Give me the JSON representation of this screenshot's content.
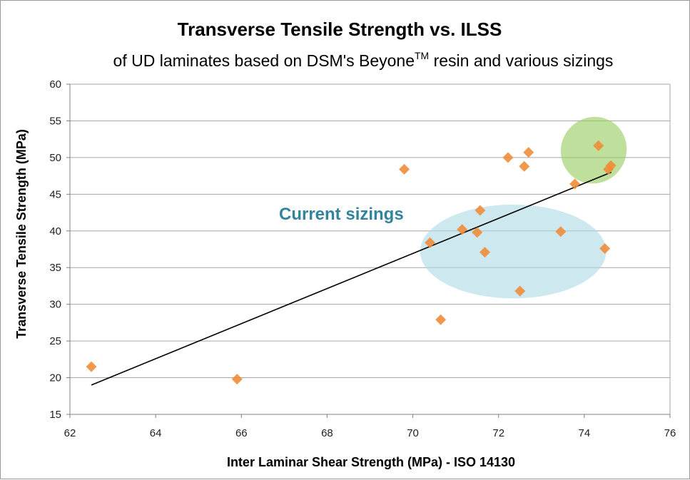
{
  "chart_data": {
    "type": "scatter",
    "title": "Transverse Tensile Strength vs. ILSS",
    "subtitle": {
      "main": "of UD laminates based on DSM's Beyone",
      "superscript": "TM",
      "rest": " resin and various sizings"
    },
    "xlabel": "Inter Laminar Shear Strength (MPa)  - ISO 14130",
    "ylabel": "Transverse Tensile Strength (MPa)",
    "xlim": [
      62,
      76
    ],
    "ylim": [
      15,
      60
    ],
    "xticks": [
      62,
      64,
      66,
      68,
      70,
      72,
      74,
      76
    ],
    "yticks": [
      15,
      20,
      25,
      30,
      35,
      40,
      45,
      50,
      55,
      60
    ],
    "grid": "horizontal",
    "legend": "none",
    "marker": "diamond",
    "colors": {
      "points": "#f08a35",
      "trendline": "#000000",
      "current_ellipse": "#add8e6",
      "green_ellipse": "#9bd067",
      "annotation_text": "#31849b",
      "gridline": "#a6a6a6"
    },
    "points": [
      {
        "x": 62.5,
        "y": 21.5
      },
      {
        "x": 65.9,
        "y": 19.8
      },
      {
        "x": 69.8,
        "y": 48.4
      },
      {
        "x": 70.4,
        "y": 38.4
      },
      {
        "x": 70.65,
        "y": 27.9
      },
      {
        "x": 71.15,
        "y": 40.2
      },
      {
        "x": 71.5,
        "y": 39.8
      },
      {
        "x": 71.57,
        "y": 42.8
      },
      {
        "x": 71.68,
        "y": 37.1
      },
      {
        "x": 72.22,
        "y": 50.0
      },
      {
        "x": 72.5,
        "y": 31.8
      },
      {
        "x": 72.6,
        "y": 48.8
      },
      {
        "x": 72.7,
        "y": 50.7
      },
      {
        "x": 73.45,
        "y": 39.9
      },
      {
        "x": 73.78,
        "y": 46.4
      },
      {
        "x": 74.33,
        "y": 51.6
      },
      {
        "x": 74.48,
        "y": 37.6
      },
      {
        "x": 74.56,
        "y": 48.4
      },
      {
        "x": 74.62,
        "y": 48.9
      }
    ],
    "trendline": {
      "x": [
        62.5,
        74.63
      ],
      "y": [
        19.0,
        48.0
      ]
    },
    "annotations": [
      {
        "id": "current-sizings",
        "label": "Current sizings",
        "ellipse": {
          "cx": 72.34,
          "cy": 37.2,
          "rx": 2.17,
          "ry": 6.4
        }
      },
      {
        "id": "highlight",
        "label": "",
        "ellipse": {
          "cx": 74.22,
          "cy": 51.0,
          "rx": 0.76,
          "ry": 4.6,
          "rotate_deg": 35
        }
      }
    ]
  }
}
